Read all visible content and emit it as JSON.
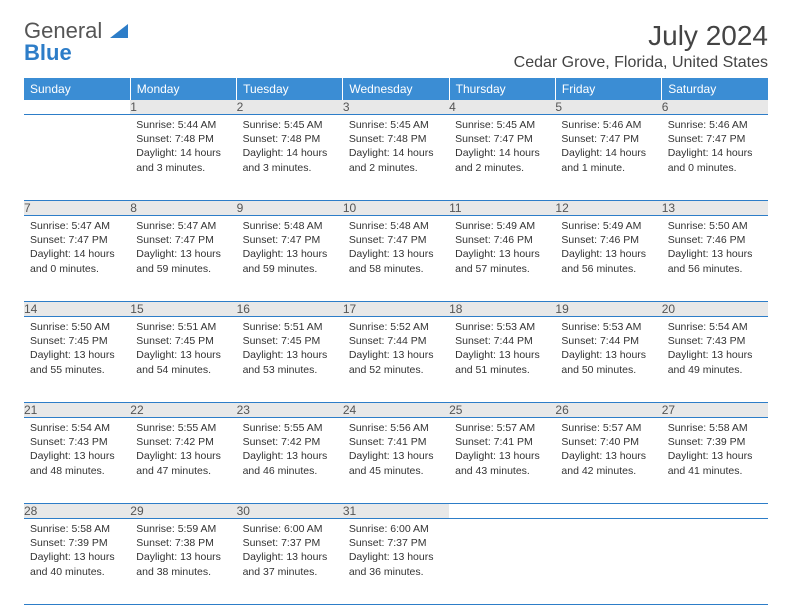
{
  "logo": {
    "text_general": "General",
    "text_blue": "Blue"
  },
  "header": {
    "month_year": "July 2024",
    "location": "Cedar Grove, Florida, United States"
  },
  "colors": {
    "header_bg": "#3b8dd4",
    "header_text": "#ffffff",
    "daynum_bg": "#e8e8e8",
    "row_divider": "#2d7dc8",
    "logo_blue": "#2d7dc8",
    "body_text": "#333333"
  },
  "weekdays": [
    "Sunday",
    "Monday",
    "Tuesday",
    "Wednesday",
    "Thursday",
    "Friday",
    "Saturday"
  ],
  "weeks": [
    {
      "nums": [
        "",
        "1",
        "2",
        "3",
        "4",
        "5",
        "6"
      ],
      "cells": [
        null,
        {
          "sunrise": "5:44 AM",
          "sunset": "7:48 PM",
          "daylight": "14 hours and 3 minutes."
        },
        {
          "sunrise": "5:45 AM",
          "sunset": "7:48 PM",
          "daylight": "14 hours and 3 minutes."
        },
        {
          "sunrise": "5:45 AM",
          "sunset": "7:48 PM",
          "daylight": "14 hours and 2 minutes."
        },
        {
          "sunrise": "5:45 AM",
          "sunset": "7:47 PM",
          "daylight": "14 hours and 2 minutes."
        },
        {
          "sunrise": "5:46 AM",
          "sunset": "7:47 PM",
          "daylight": "14 hours and 1 minute."
        },
        {
          "sunrise": "5:46 AM",
          "sunset": "7:47 PM",
          "daylight": "14 hours and 0 minutes."
        }
      ]
    },
    {
      "nums": [
        "7",
        "8",
        "9",
        "10",
        "11",
        "12",
        "13"
      ],
      "cells": [
        {
          "sunrise": "5:47 AM",
          "sunset": "7:47 PM",
          "daylight": "14 hours and 0 minutes."
        },
        {
          "sunrise": "5:47 AM",
          "sunset": "7:47 PM",
          "daylight": "13 hours and 59 minutes."
        },
        {
          "sunrise": "5:48 AM",
          "sunset": "7:47 PM",
          "daylight": "13 hours and 59 minutes."
        },
        {
          "sunrise": "5:48 AM",
          "sunset": "7:47 PM",
          "daylight": "13 hours and 58 minutes."
        },
        {
          "sunrise": "5:49 AM",
          "sunset": "7:46 PM",
          "daylight": "13 hours and 57 minutes."
        },
        {
          "sunrise": "5:49 AM",
          "sunset": "7:46 PM",
          "daylight": "13 hours and 56 minutes."
        },
        {
          "sunrise": "5:50 AM",
          "sunset": "7:46 PM",
          "daylight": "13 hours and 56 minutes."
        }
      ]
    },
    {
      "nums": [
        "14",
        "15",
        "16",
        "17",
        "18",
        "19",
        "20"
      ],
      "cells": [
        {
          "sunrise": "5:50 AM",
          "sunset": "7:45 PM",
          "daylight": "13 hours and 55 minutes."
        },
        {
          "sunrise": "5:51 AM",
          "sunset": "7:45 PM",
          "daylight": "13 hours and 54 minutes."
        },
        {
          "sunrise": "5:51 AM",
          "sunset": "7:45 PM",
          "daylight": "13 hours and 53 minutes."
        },
        {
          "sunrise": "5:52 AM",
          "sunset": "7:44 PM",
          "daylight": "13 hours and 52 minutes."
        },
        {
          "sunrise": "5:53 AM",
          "sunset": "7:44 PM",
          "daylight": "13 hours and 51 minutes."
        },
        {
          "sunrise": "5:53 AM",
          "sunset": "7:44 PM",
          "daylight": "13 hours and 50 minutes."
        },
        {
          "sunrise": "5:54 AM",
          "sunset": "7:43 PM",
          "daylight": "13 hours and 49 minutes."
        }
      ]
    },
    {
      "nums": [
        "21",
        "22",
        "23",
        "24",
        "25",
        "26",
        "27"
      ],
      "cells": [
        {
          "sunrise": "5:54 AM",
          "sunset": "7:43 PM",
          "daylight": "13 hours and 48 minutes."
        },
        {
          "sunrise": "5:55 AM",
          "sunset": "7:42 PM",
          "daylight": "13 hours and 47 minutes."
        },
        {
          "sunrise": "5:55 AM",
          "sunset": "7:42 PM",
          "daylight": "13 hours and 46 minutes."
        },
        {
          "sunrise": "5:56 AM",
          "sunset": "7:41 PM",
          "daylight": "13 hours and 45 minutes."
        },
        {
          "sunrise": "5:57 AM",
          "sunset": "7:41 PM",
          "daylight": "13 hours and 43 minutes."
        },
        {
          "sunrise": "5:57 AM",
          "sunset": "7:40 PM",
          "daylight": "13 hours and 42 minutes."
        },
        {
          "sunrise": "5:58 AM",
          "sunset": "7:39 PM",
          "daylight": "13 hours and 41 minutes."
        }
      ]
    },
    {
      "nums": [
        "28",
        "29",
        "30",
        "31",
        "",
        "",
        ""
      ],
      "cells": [
        {
          "sunrise": "5:58 AM",
          "sunset": "7:39 PM",
          "daylight": "13 hours and 40 minutes."
        },
        {
          "sunrise": "5:59 AM",
          "sunset": "7:38 PM",
          "daylight": "13 hours and 38 minutes."
        },
        {
          "sunrise": "6:00 AM",
          "sunset": "7:37 PM",
          "daylight": "13 hours and 37 minutes."
        },
        {
          "sunrise": "6:00 AM",
          "sunset": "7:37 PM",
          "daylight": "13 hours and 36 minutes."
        },
        null,
        null,
        null
      ]
    }
  ],
  "labels": {
    "sunrise": "Sunrise:",
    "sunset": "Sunset:",
    "daylight": "Daylight:"
  }
}
